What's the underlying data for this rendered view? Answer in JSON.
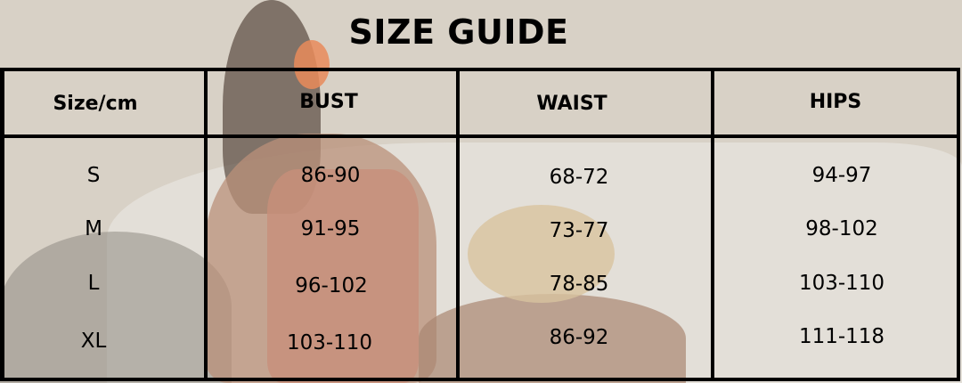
{
  "title": "SIZE GUIDE",
  "headers": [
    "Size/cm",
    "BUST",
    "WAIST",
    "HIPS"
  ],
  "rows": [
    {
      "size": "S",
      "bust": "86-90",
      "waist": "68-72",
      "hips": "94-97"
    },
    {
      "size": "M",
      "bust": "91-95",
      "waist": "73-77",
      "hips": "98-102"
    },
    {
      "size": "L",
      "bust": "96-102",
      "waist": "78-85",
      "hips": "103-110"
    },
    {
      "size": "XL",
      "bust": "103-110",
      "waist": "86-92",
      "hips": "111-118"
    }
  ]
}
